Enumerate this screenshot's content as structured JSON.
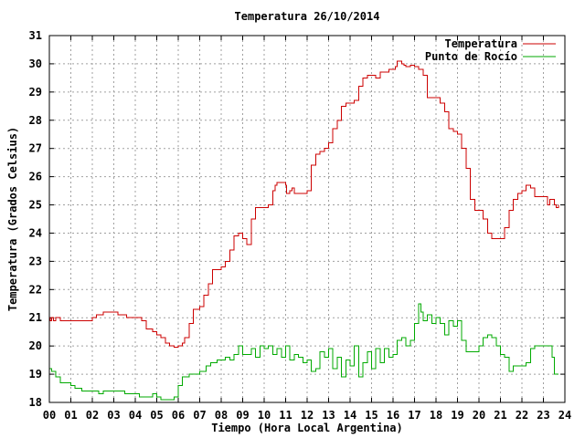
{
  "chart_data": {
    "type": "line",
    "title": "Temperatura 26/10/2014",
    "xlabel": "Tiempo (Hora Local Argentina)",
    "ylabel": "Temperatura (Grados Celsius)",
    "xlim": [
      0,
      24
    ],
    "ylim": [
      18,
      31
    ],
    "x_ticks": [
      0,
      1,
      2,
      3,
      4,
      5,
      6,
      7,
      8,
      9,
      10,
      11,
      12,
      13,
      14,
      15,
      16,
      17,
      18,
      19,
      20,
      21,
      22,
      23,
      24
    ],
    "x_tick_labels": [
      "00",
      "01",
      "02",
      "03",
      "04",
      "05",
      "06",
      "07",
      "08",
      "09",
      "10",
      "11",
      "12",
      "13",
      "14",
      "15",
      "16",
      "17",
      "18",
      "19",
      "20",
      "21",
      "22",
      "23",
      "24"
    ],
    "y_ticks": [
      18,
      19,
      20,
      21,
      22,
      23,
      24,
      25,
      26,
      27,
      28,
      29,
      30,
      31
    ],
    "y_tick_labels": [
      "18",
      "19",
      "20",
      "21",
      "22",
      "23",
      "24",
      "25",
      "26",
      "27",
      "28",
      "29",
      "30",
      "31"
    ],
    "grid": true,
    "legend_position": "top-right",
    "series": [
      {
        "name": "Temperatura",
        "color": "#cc0000",
        "x": [
          0.0,
          0.05,
          0.1,
          0.2,
          0.3,
          0.4,
          0.5,
          0.55,
          1.0,
          1.5,
          2.0,
          2.2,
          2.5,
          3.0,
          3.2,
          3.4,
          3.6,
          4.0,
          4.3,
          4.5,
          4.8,
          5.0,
          5.2,
          5.4,
          5.6,
          5.8,
          6.0,
          6.2,
          6.3,
          6.5,
          6.7,
          7.0,
          7.2,
          7.4,
          7.6,
          8.0,
          8.2,
          8.4,
          8.6,
          8.8,
          9.0,
          9.2,
          9.4,
          9.6,
          10.0,
          10.2,
          10.4,
          10.5,
          10.6,
          11.0,
          11.05,
          11.2,
          11.3,
          11.4,
          11.6,
          12.0,
          12.2,
          12.4,
          12.6,
          12.8,
          13.0,
          13.2,
          13.4,
          13.6,
          13.8,
          14.0,
          14.2,
          14.4,
          14.6,
          14.8,
          15.0,
          15.2,
          15.4,
          15.6,
          15.8,
          16.0,
          16.1,
          16.2,
          16.4,
          16.5,
          16.6,
          16.7,
          16.8,
          17.0,
          17.2,
          17.4,
          17.6,
          17.8,
          18.0,
          18.2,
          18.4,
          18.6,
          18.8,
          19.0,
          19.2,
          19.4,
          19.6,
          19.8,
          20.0,
          20.2,
          20.4,
          20.6,
          20.8,
          21.0,
          21.2,
          21.4,
          21.6,
          21.8,
          22.0,
          22.2,
          22.4,
          22.6,
          22.8,
          23.0,
          23.2,
          23.3,
          23.4,
          23.5,
          23.6,
          23.7
        ],
        "y": [
          21.0,
          20.9,
          21.0,
          20.9,
          21.0,
          21.0,
          20.9,
          20.9,
          20.9,
          20.9,
          21.0,
          21.1,
          21.2,
          21.2,
          21.1,
          21.1,
          21.0,
          21.0,
          20.9,
          20.6,
          20.5,
          20.4,
          20.3,
          20.1,
          20.0,
          19.95,
          20.0,
          20.1,
          20.3,
          20.8,
          21.3,
          21.4,
          21.8,
          22.2,
          22.7,
          22.8,
          23.0,
          23.4,
          23.9,
          24.0,
          23.8,
          23.6,
          24.5,
          24.9,
          24.9,
          25.0,
          25.5,
          25.7,
          25.8,
          25.7,
          25.4,
          25.5,
          25.6,
          25.4,
          25.4,
          25.5,
          26.4,
          26.8,
          26.9,
          27.0,
          27.2,
          27.7,
          28.0,
          28.5,
          28.6,
          28.6,
          28.7,
          29.2,
          29.5,
          29.6,
          29.6,
          29.5,
          29.7,
          29.7,
          29.8,
          29.8,
          29.9,
          30.1,
          30.0,
          29.95,
          29.9,
          29.9,
          29.95,
          29.9,
          29.8,
          29.6,
          28.8,
          28.8,
          28.8,
          28.6,
          28.3,
          27.7,
          27.6,
          27.5,
          27.0,
          26.3,
          25.2,
          24.8,
          24.8,
          24.5,
          24.0,
          23.8,
          23.8,
          23.8,
          24.2,
          24.8,
          25.2,
          25.4,
          25.5,
          25.7,
          25.6,
          25.3,
          25.3,
          25.3,
          25.0,
          25.2,
          25.2,
          25.0,
          24.9,
          25.0
        ]
      },
      {
        "name": "Punto de Rocío",
        "color": "#00aa00",
        "x": [
          0.0,
          0.1,
          0.3,
          0.5,
          1.0,
          1.2,
          1.5,
          2.0,
          2.3,
          2.5,
          3.0,
          3.2,
          3.5,
          4.0,
          4.2,
          4.5,
          4.8,
          5.0,
          5.2,
          5.5,
          5.8,
          6.0,
          6.2,
          6.5,
          7.0,
          7.3,
          7.5,
          7.8,
          8.0,
          8.2,
          8.4,
          8.6,
          8.8,
          9.0,
          9.2,
          9.4,
          9.6,
          9.8,
          10.0,
          10.2,
          10.4,
          10.6,
          10.8,
          11.0,
          11.2,
          11.4,
          11.6,
          11.8,
          12.0,
          12.2,
          12.4,
          12.6,
          12.8,
          13.0,
          13.2,
          13.4,
          13.6,
          13.8,
          14.0,
          14.2,
          14.4,
          14.6,
          14.8,
          15.0,
          15.2,
          15.4,
          15.6,
          15.8,
          16.0,
          16.2,
          16.4,
          16.6,
          16.8,
          17.0,
          17.2,
          17.3,
          17.4,
          17.6,
          17.8,
          18.0,
          18.2,
          18.4,
          18.6,
          18.8,
          19.0,
          19.2,
          19.4,
          19.6,
          19.8,
          20.0,
          20.2,
          20.4,
          20.6,
          20.8,
          21.0,
          21.2,
          21.4,
          21.6,
          21.8,
          22.0,
          22.2,
          22.4,
          22.6,
          22.8,
          23.0,
          23.2,
          23.4,
          23.5,
          23.6,
          23.7
        ],
        "y": [
          19.2,
          19.1,
          18.9,
          18.7,
          18.6,
          18.5,
          18.4,
          18.4,
          18.3,
          18.4,
          18.4,
          18.4,
          18.3,
          18.3,
          18.2,
          18.2,
          18.3,
          18.2,
          18.1,
          18.1,
          18.2,
          18.6,
          18.9,
          19.0,
          19.1,
          19.3,
          19.4,
          19.5,
          19.5,
          19.6,
          19.5,
          19.7,
          20.0,
          19.7,
          19.7,
          19.9,
          19.6,
          20.0,
          19.9,
          20.0,
          19.7,
          19.9,
          19.6,
          20.0,
          19.5,
          19.7,
          19.6,
          19.4,
          19.5,
          19.1,
          19.2,
          19.8,
          19.6,
          19.9,
          19.2,
          19.6,
          18.9,
          19.5,
          19.3,
          20.0,
          18.9,
          19.4,
          19.8,
          19.2,
          19.9,
          19.4,
          19.9,
          19.6,
          19.7,
          20.2,
          20.3,
          20.0,
          20.2,
          20.8,
          21.5,
          21.2,
          20.9,
          21.1,
          20.8,
          21.0,
          20.8,
          20.4,
          20.9,
          20.7,
          20.9,
          20.2,
          19.8,
          19.8,
          19.8,
          20.0,
          20.3,
          20.4,
          20.3,
          20.0,
          19.7,
          19.6,
          19.1,
          19.3,
          19.3,
          19.3,
          19.4,
          19.9,
          20.0,
          20.0,
          20.0,
          20.0,
          19.6,
          19.0,
          19.0,
          19.0
        ]
      }
    ]
  }
}
